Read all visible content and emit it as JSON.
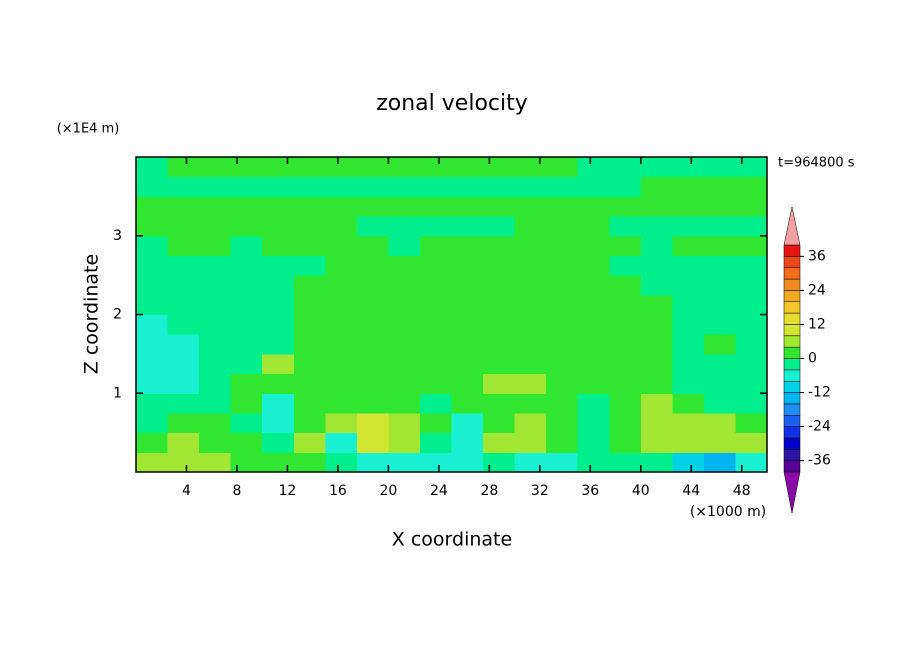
{
  "chart_data": {
    "type": "contour",
    "title": "zonal velocity",
    "xlabel": "X coordinate",
    "ylabel": "Z coordinate",
    "xunit": "(×1000 m)",
    "yunit": "(×1E4 m)",
    "annotation": "t=964800 s",
    "xlim": [
      0,
      50
    ],
    "xticks": [
      4,
      8,
      12,
      16,
      20,
      24,
      28,
      32,
      36,
      40,
      44,
      48
    ],
    "ylim": [
      0,
      4
    ],
    "yticks": [
      1,
      2,
      3
    ],
    "levels": [
      -40,
      -36,
      -32,
      -28,
      -24,
      -20,
      -16,
      -12,
      -8,
      -4,
      0,
      4,
      8,
      12,
      16,
      20,
      24,
      28,
      32,
      36,
      40
    ],
    "colors": [
      "#8a0aa8",
      "#5a0096",
      "#2c14a0",
      "#0000c8",
      "#1030e6",
      "#1e5ff0",
      "#1e8cf0",
      "#00b4f0",
      "#00d2e6",
      "#19f0d2",
      "#00ee8c",
      "#30e630",
      "#a0e632",
      "#d2e632",
      "#e6dc32",
      "#f0c828",
      "#f0aa1e",
      "#f08c1e",
      "#f06e1e",
      "#f0461e",
      "#e61414",
      "#f0a0a0"
    ],
    "cbar_ticks": [
      -36,
      -24,
      -12,
      0,
      12,
      24,
      36
    ],
    "z": [
      [
        6,
        6,
        6,
        2,
        2,
        2,
        -2,
        -6,
        -6,
        -6,
        -6,
        -2,
        -6,
        -6,
        -2,
        -2,
        -2,
        -10,
        -14,
        -6
      ],
      [
        2,
        6,
        2,
        2,
        -2,
        6,
        -6,
        10,
        6,
        -2,
        -6,
        6,
        6,
        2,
        -2,
        2,
        6,
        6,
        6,
        6
      ],
      [
        -2,
        2,
        2,
        -2,
        -6,
        2,
        6,
        10,
        6,
        2,
        -6,
        2,
        6,
        2,
        -2,
        2,
        6,
        6,
        6,
        2
      ],
      [
        -2,
        -2,
        -2,
        2,
        -6,
        2,
        2,
        2,
        2,
        -2,
        2,
        2,
        2,
        2,
        -2,
        2,
        6,
        2,
        -2,
        -2
      ],
      [
        -6,
        -6,
        -2,
        2,
        2,
        2,
        2,
        2,
        2,
        2,
        2,
        6,
        6,
        2,
        2,
        2,
        2,
        -2,
        -2,
        -2
      ],
      [
        -6,
        -6,
        -2,
        -2,
        6,
        2,
        2,
        2,
        2,
        2,
        2,
        2,
        2,
        2,
        2,
        2,
        2,
        -2,
        -2,
        -2
      ],
      [
        -6,
        -6,
        -2,
        -2,
        -2,
        2,
        2,
        2,
        2,
        2,
        2,
        2,
        2,
        2,
        2,
        2,
        2,
        -2,
        2,
        -2
      ],
      [
        -6,
        -2,
        -2,
        -2,
        -2,
        2,
        2,
        2,
        2,
        2,
        2,
        2,
        2,
        2,
        2,
        2,
        2,
        -2,
        -2,
        -2
      ],
      [
        -2,
        -2,
        -2,
        -2,
        -2,
        2,
        2,
        2,
        2,
        2,
        2,
        2,
        2,
        2,
        2,
        2,
        2,
        -2,
        -2,
        -2
      ],
      [
        -2,
        -2,
        -2,
        -2,
        -2,
        2,
        2,
        2,
        2,
        2,
        2,
        2,
        2,
        2,
        2,
        2,
        -2,
        -2,
        -2,
        -2
      ],
      [
        -2,
        -2,
        -2,
        -2,
        -2,
        -2,
        2,
        2,
        2,
        2,
        2,
        2,
        2,
        2,
        2,
        -2,
        -2,
        -2,
        -2,
        -2
      ],
      [
        -2,
        2,
        2,
        -2,
        2,
        2,
        2,
        2,
        -2,
        2,
        2,
        2,
        2,
        2,
        2,
        2,
        -2,
        2,
        2,
        2
      ],
      [
        2,
        2,
        2,
        2,
        2,
        2,
        2,
        -2,
        -2,
        -2,
        -2,
        -2,
        2,
        2,
        2,
        -2,
        -2,
        -2,
        -2,
        -2
      ],
      [
        2,
        2,
        2,
        2,
        2,
        2,
        2,
        2,
        2,
        2,
        2,
        2,
        2,
        2,
        2,
        2,
        2,
        2,
        2,
        2
      ],
      [
        -2,
        -2,
        -2,
        -2,
        -2,
        -2,
        -2,
        -2,
        -2,
        -2,
        -2,
        -2,
        -2,
        -2,
        -2,
        -2,
        2,
        2,
        2,
        2
      ],
      [
        -2,
        2,
        2,
        2,
        2,
        2,
        2,
        2,
        2,
        2,
        2,
        2,
        2,
        2,
        -2,
        -2,
        -2,
        -2,
        -2,
        -2
      ]
    ]
  }
}
